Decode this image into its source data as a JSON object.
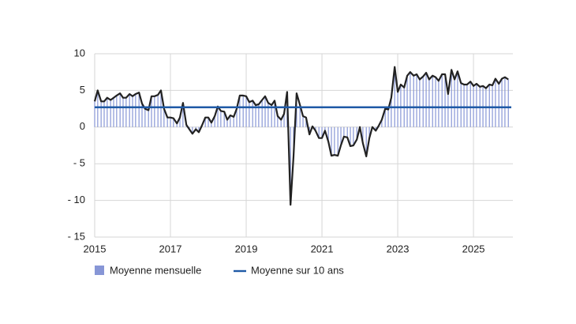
{
  "chart_data": {
    "type": "bar-line",
    "x": [
      2015,
      2015.08,
      2015.17,
      2015.25,
      2015.33,
      2015.42,
      2015.5,
      2015.58,
      2015.67,
      2015.75,
      2015.83,
      2015.92,
      2016,
      2016.08,
      2016.17,
      2016.25,
      2016.33,
      2016.42,
      2016.5,
      2016.58,
      2016.67,
      2016.75,
      2016.83,
      2016.92,
      2017,
      2017.08,
      2017.17,
      2017.25,
      2017.33,
      2017.42,
      2017.5,
      2017.58,
      2017.67,
      2017.75,
      2017.83,
      2017.92,
      2018,
      2018.08,
      2018.17,
      2018.25,
      2018.33,
      2018.42,
      2018.5,
      2018.58,
      2018.67,
      2018.75,
      2018.83,
      2018.92,
      2019,
      2019.08,
      2019.17,
      2019.25,
      2019.33,
      2019.42,
      2019.5,
      2019.58,
      2019.67,
      2019.75,
      2019.83,
      2019.92,
      2020,
      2020.08,
      2020.17,
      2020.25,
      2020.33,
      2020.42,
      2020.5,
      2020.58,
      2020.67,
      2020.75,
      2020.83,
      2020.92,
      2021,
      2021.08,
      2021.17,
      2021.25,
      2021.33,
      2021.42,
      2021.5,
      2021.58,
      2021.67,
      2021.75,
      2021.83,
      2021.92,
      2022,
      2022.08,
      2022.17,
      2022.25,
      2022.33,
      2022.42,
      2022.5,
      2022.58,
      2022.67,
      2022.75,
      2022.83,
      2022.92,
      2023,
      2023.08,
      2023.17,
      2023.25,
      2023.33,
      2023.42,
      2023.5,
      2023.58,
      2023.67,
      2023.75,
      2023.83,
      2023.92,
      2024,
      2024.08,
      2024.17,
      2024.25,
      2024.33,
      2024.42,
      2024.5,
      2024.58,
      2024.67,
      2024.75,
      2024.83,
      2024.92,
      2025,
      2025.08,
      2025.17,
      2025.25,
      2025.33,
      2025.42,
      2025.5,
      2025.58,
      2025.67,
      2025.75,
      2025.83,
      2025.92
    ],
    "series": [
      {
        "name": "Moyenne mensuelle",
        "color": "#8796d6",
        "line_color": "#222222",
        "values": [
          3.5,
          5,
          3.5,
          3.5,
          4,
          3.7,
          4,
          4.3,
          4.6,
          4,
          4,
          4.5,
          4.2,
          4.5,
          4.7,
          3.2,
          2.5,
          2.3,
          4.2,
          4.2,
          4.4,
          5,
          2.5,
          1.3,
          1.3,
          1.2,
          0.5,
          1.3,
          3.3,
          0.3,
          -0.3,
          -0.9,
          -0.3,
          -0.7,
          0.2,
          1.3,
          1.3,
          0.6,
          1.5,
          2.8,
          2.2,
          2.1,
          1,
          1.6,
          1.4,
          2.5,
          4.3,
          4.3,
          4.2,
          3.4,
          3.6,
          3,
          3.1,
          3.7,
          4.2,
          3.3,
          3,
          3.6,
          1.5,
          1,
          1.8,
          4.8,
          -10.6,
          -4,
          4.6,
          3,
          1.5,
          1.3,
          -1,
          0.1,
          -0.5,
          -1.5,
          -1.5,
          -0.5,
          -2,
          -3.9,
          -3.8,
          -3.9,
          -2.5,
          -1.3,
          -1.4,
          -2.6,
          -2.5,
          -1.7,
          0,
          -2.2,
          -4,
          -1.5,
          0,
          -0.5,
          0.2,
          1,
          2.5,
          2.4,
          4,
          8.2,
          4.8,
          5.8,
          5.4,
          7,
          7.5,
          7,
          7.2,
          6.5,
          6.9,
          7.4,
          6.5,
          7,
          6.8,
          6.3,
          7.2,
          7.2,
          4.5,
          7.8,
          6.5,
          7.6,
          6,
          5.8,
          5.8,
          6.2,
          5.6,
          5.9,
          5.5,
          5.6,
          5.3,
          5.8,
          5.7,
          6.6,
          5.9,
          6.6,
          6.8,
          6.5
        ]
      },
      {
        "name": "Moyenne sur 10 ans",
        "color": "#1f5aa6",
        "value": 2.7
      }
    ],
    "xlim": [
      2015,
      2026.04
    ],
    "ylim": [
      -15,
      10
    ],
    "xticks": [
      2015,
      2017,
      2019,
      2021,
      2023,
      2025
    ],
    "yticks": [
      {
        "value": -15,
        "label": "- 15"
      },
      {
        "value": -10,
        "label": "- 10"
      },
      {
        "value": -5,
        "label": "- 5"
      },
      0,
      5,
      10
    ],
    "grid": true
  }
}
